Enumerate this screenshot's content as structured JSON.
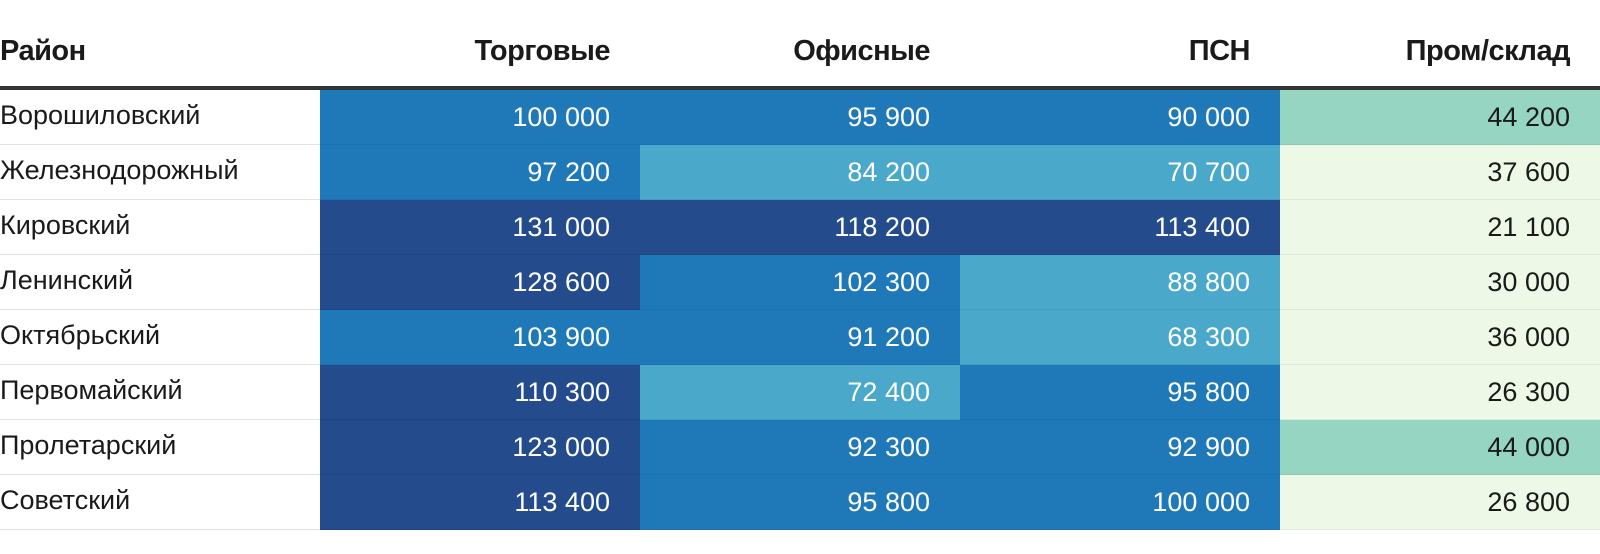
{
  "chart_data": {
    "type": "table",
    "columns": [
      "Район",
      "Торговые",
      "Офисные",
      "ПСН",
      "Пром/склад"
    ],
    "rows": [
      {
        "district": "Ворошиловский",
        "values": [
          100000,
          95900,
          90000,
          44200
        ],
        "labels": [
          "100 000",
          "95 900",
          "90 000",
          "44 200"
        ]
      },
      {
        "district": "Железнодорожный",
        "values": [
          97200,
          84200,
          70700,
          37600
        ],
        "labels": [
          "97 200",
          "84 200",
          "70 700",
          "37 600"
        ]
      },
      {
        "district": "Кировский",
        "values": [
          131000,
          118200,
          113400,
          21100
        ],
        "labels": [
          "131 000",
          "118 200",
          "113 400",
          "21 100"
        ]
      },
      {
        "district": "Ленинский",
        "values": [
          128600,
          102300,
          88800,
          30000
        ],
        "labels": [
          "128 600",
          "102 300",
          "88 800",
          "30 000"
        ]
      },
      {
        "district": "Октябрьский",
        "values": [
          103900,
          91200,
          68300,
          36000
        ],
        "labels": [
          "103 900",
          "91 200",
          "68 300",
          "36 000"
        ]
      },
      {
        "district": "Первомайский",
        "values": [
          110300,
          72400,
          95800,
          26300
        ],
        "labels": [
          "110 300",
          "72 400",
          "95 800",
          "26 300"
        ]
      },
      {
        "district": "Пролетарский",
        "values": [
          123000,
          92300,
          92900,
          44000
        ],
        "labels": [
          "123 000",
          "92 300",
          "92 900",
          "44 000"
        ]
      },
      {
        "district": "Советский",
        "values": [
          113400,
          95800,
          100000,
          26800
        ],
        "labels": [
          "113 400",
          "95 800",
          "100 000",
          "26 800"
        ]
      }
    ],
    "color_scale": [
      {
        "min": 0,
        "max": 40000,
        "color": "#edf8e6",
        "text": "#1a1a1a"
      },
      {
        "min": 40000,
        "max": 60000,
        "color": "#96d5c1",
        "text": "#1a1a1a"
      },
      {
        "min": 60000,
        "max": 90000,
        "color": "#4aa8cb",
        "text": "#ffffff"
      },
      {
        "min": 90000,
        "max": 110000,
        "color": "#1f78b8",
        "text": "#ffffff"
      },
      {
        "min": 110000,
        "max": 1000000,
        "color": "#244b8c",
        "text": "#ffffff"
      }
    ]
  }
}
